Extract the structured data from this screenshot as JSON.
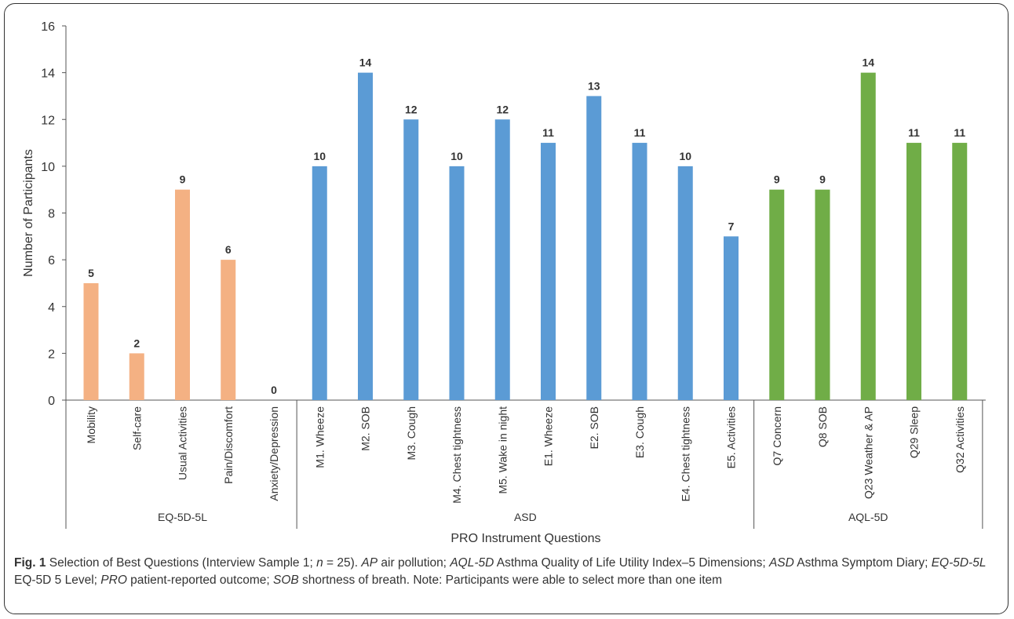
{
  "chart_data": {
    "type": "bar",
    "ylabel": "Number of Participants",
    "xlabel": "PRO Instrument  Questions",
    "ylim": [
      0,
      16
    ],
    "yticks": [
      0,
      2,
      4,
      6,
      8,
      10,
      12,
      14,
      16
    ],
    "grid": false,
    "groups": [
      {
        "name": "EQ-5D-5L",
        "color": "#f4b183",
        "categories": [
          "Mobility",
          "Self-care",
          "Usual Activities",
          "Pain/Discomfort",
          "Anxiety/Depression"
        ],
        "values": [
          5,
          2,
          9,
          6,
          0
        ]
      },
      {
        "name": "ASD",
        "color": "#5b9bd5",
        "categories": [
          "M1. Wheeze",
          "M2. SOB",
          "M3. Cough",
          "M4. Chest tightness",
          "M5. Wake in night",
          "E1. Wheeze",
          "E2. SOB",
          "E3. Cough",
          "E4. Chest tightness",
          "E5. Activities"
        ],
        "values": [
          10,
          14,
          12,
          10,
          12,
          11,
          13,
          11,
          10,
          7
        ]
      },
      {
        "name": "AQL-5D",
        "color": "#70ad47",
        "categories": [
          "Q7 Concern",
          "Q8 SOB",
          "Q23 Weather & AP",
          "Q29 Sleep",
          "Q32 Activities"
        ],
        "values": [
          9,
          9,
          14,
          11,
          11
        ]
      }
    ]
  },
  "caption": {
    "label": "Fig. 1",
    "parts": [
      {
        "t": " Selection of Best Questions (Interview Sample 1; ",
        "i": false
      },
      {
        "t": "n",
        "i": true
      },
      {
        "t": " = 25). ",
        "i": false
      },
      {
        "t": "AP",
        "i": true
      },
      {
        "t": " air pollution; ",
        "i": false
      },
      {
        "t": "AQL-5D",
        "i": true
      },
      {
        "t": " Asthma Quality of Life Utility Index–5 Dimensions; ",
        "i": false
      },
      {
        "t": "ASD",
        "i": true
      },
      {
        "t": " Asthma Symptom Diary; ",
        "i": false
      },
      {
        "t": "EQ-5D-5L",
        "i": true
      },
      {
        "t": " EQ-5D 5 Level; ",
        "i": false
      },
      {
        "t": "PRO",
        "i": true
      },
      {
        "t": " patient-reported outcome; ",
        "i": false
      },
      {
        "t": "SOB",
        "i": true
      },
      {
        "t": " shortness of breath. Note: Participants were able to select more than one item",
        "i": false
      }
    ]
  }
}
